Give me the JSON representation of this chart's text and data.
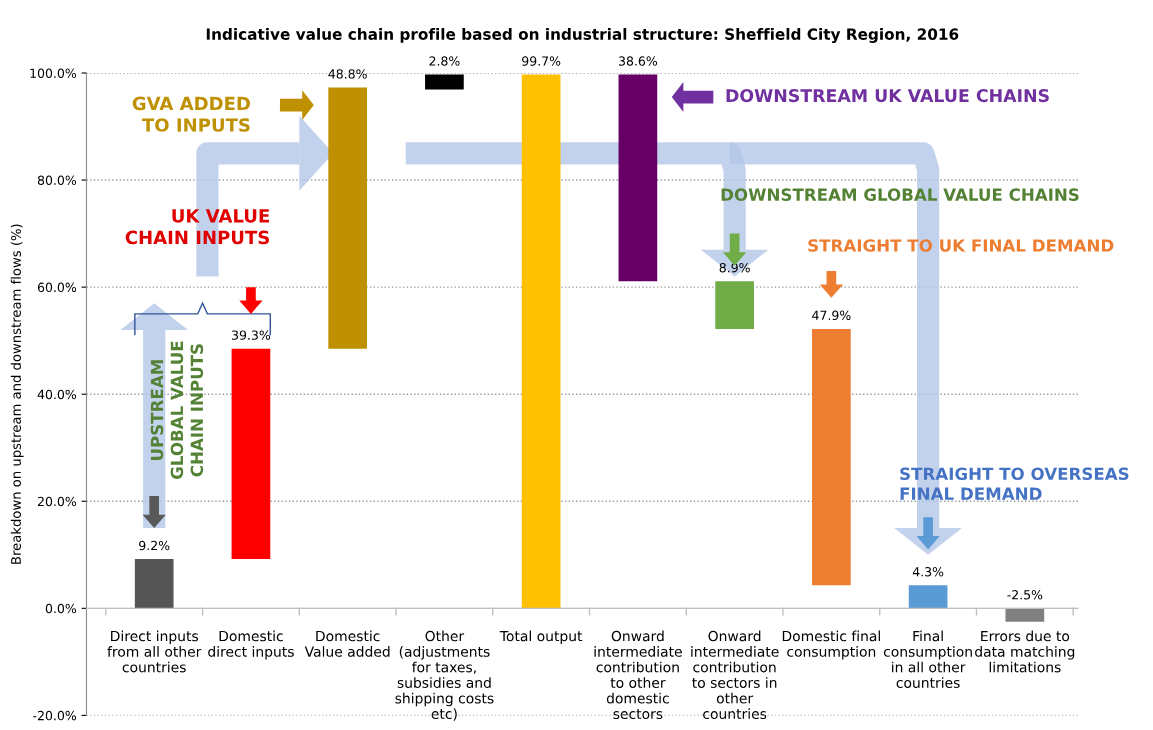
{
  "chart_data": {
    "type": "bar",
    "title": "Indicative value chain profile based on industrial structure: Sheffield City Region, 2016",
    "ylabel": "Breakdown on upstream and downstream flows (%)",
    "categories": [
      "Direct inputs\nfrom all other\ncountries",
      "Domestic\ndirect inputs",
      "Domestic\nValue added",
      "Other\n(adjustments\nfor taxes,\nsubsidies and\nshipping costs\netc)",
      "Total output",
      "Onward\nintermediate\ncontribution\nto other\ndomestic\nsectors",
      "Onward\nintermediate\ncontribution\nto sectors in\nother\ncountries",
      "Domestic final\nconsumption",
      "Final\nconsumption\nin all other\ncountries",
      "Errors due to\ndata matching\nlimitations"
    ],
    "values": [
      9.2,
      39.3,
      48.8,
      2.8,
      99.7,
      -38.6,
      -8.9,
      -47.9,
      4.3,
      -2.5
    ],
    "base": [
      0,
      9.2,
      48.5,
      96.9,
      0,
      99.7,
      61.1,
      52.2,
      0,
      0
    ],
    "value_labels": [
      "9.2%",
      "39.3%",
      "48.8%",
      "2.8%",
      "99.7%",
      "38.6%",
      "8.9%",
      "47.9%",
      "4.3%",
      "-2.5%"
    ],
    "colors": [
      "#555555",
      "#ff0000",
      "#bf9000",
      "#000000",
      "#ffc000",
      "#660066",
      "#70ad47",
      "#ed7d31",
      "#5b9bd5",
      "#808080"
    ],
    "ylim": [
      -20,
      100
    ],
    "yticks": [
      {
        "value": -20,
        "label": "-20.0%"
      },
      {
        "value": 0,
        "label": "0.0%"
      },
      {
        "value": 20,
        "label": "20.0%"
      },
      {
        "value": 40,
        "label": "40.0%"
      },
      {
        "value": 60,
        "label": "60.0%"
      },
      {
        "value": 80,
        "label": "80.0%"
      },
      {
        "value": 100,
        "label": "100.0%"
      }
    ],
    "grid": "y",
    "annotations": [
      "GVA ADDED\nTO INPUTS",
      "UK VALUE\nCHAIN INPUTS",
      "UPSTREAM\nGLOBAL VALUE\nCHAIN INPUTS",
      "DOWNSTREAM UK VALUE CHAINS",
      "DOWNSTREAM GLOBAL VALUE CHAINS",
      "STRAIGHT TO UK FINAL DEMAND",
      "STRAIGHT TO OVERSEAS\nFINAL DEMAND"
    ]
  }
}
